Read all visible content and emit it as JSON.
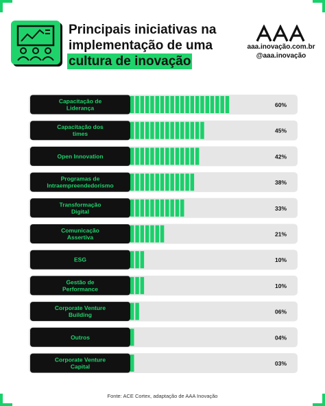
{
  "header": {
    "title_lines": [
      "Principais iniciativas na",
      "implementação de uma",
      "cultura de inovação"
    ],
    "brand_url": "aaa.inovação.com.br",
    "brand_handle": "@aaa.inovação"
  },
  "chart_data": {
    "type": "bar",
    "orientation": "horizontal",
    "categories": [
      "Capacitação de Liderança",
      "Capacitação dos times",
      "Open Innovation",
      "Programas de Intraempreendedorismo",
      "Transformação Digital",
      "Comunicação Assertiva",
      "ESG",
      "Gestão de Performance",
      "Corporate Venture Building",
      "Outros",
      "Corporate Venture Capital"
    ],
    "values": [
      60,
      45,
      42,
      38,
      33,
      21,
      10,
      10,
      6,
      4,
      3
    ],
    "value_labels": [
      "60%",
      "45%",
      "42%",
      "38%",
      "33%",
      "21%",
      "10%",
      "10%",
      "06%",
      "04%",
      "03%"
    ],
    "xlim": [
      0,
      100
    ],
    "colors": {
      "bar": "#18d16a",
      "track": "#e6e6e6",
      "label_bg": "#111111",
      "label_text": "#1fd36b"
    }
  },
  "footer": {
    "source": "Fonte: ACE Cortex, adaptação de AAA Inovação"
  }
}
